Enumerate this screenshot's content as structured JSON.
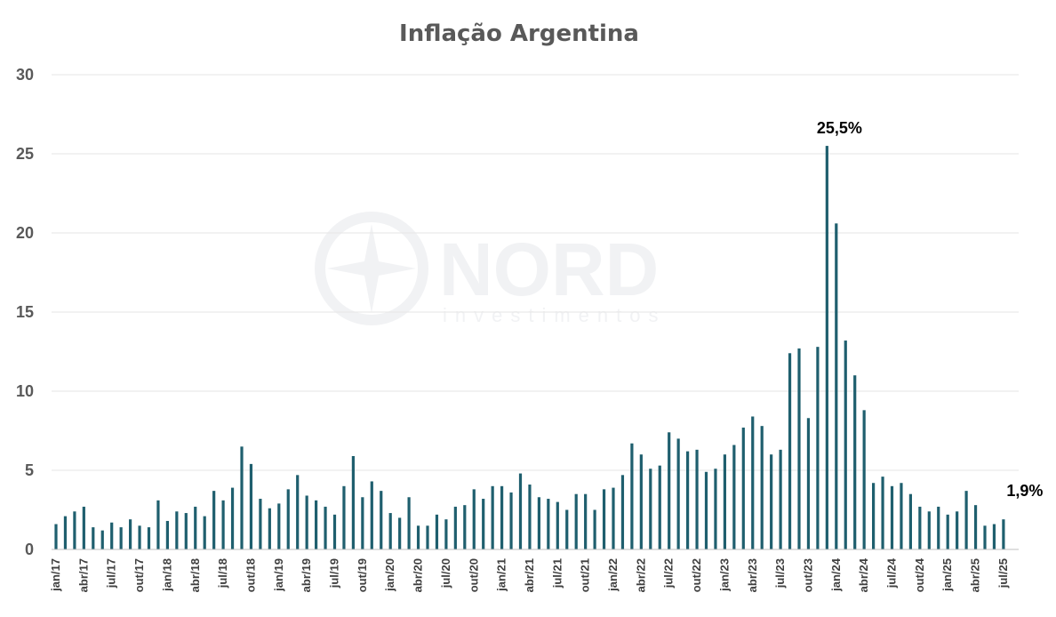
{
  "watermark": {
    "brand": "NORD",
    "sub": "investimentos",
    "logo_icon": "compass-star-icon"
  },
  "chart_data": {
    "type": "bar",
    "title": "Inflação Argentina",
    "xlabel": "",
    "ylabel": "",
    "ylim": [
      0,
      30
    ],
    "yticks": [
      "0",
      "5",
      "10",
      "15",
      "20",
      "25",
      "30"
    ],
    "grid": true,
    "legend": "none",
    "bar_color": "#1f5f6e",
    "categories": [
      "jan/17",
      "fev/17",
      "mar/17",
      "abr/17",
      "mai/17",
      "jun/17",
      "jul/17",
      "ago/17",
      "set/17",
      "out/17",
      "nov/17",
      "dez/17",
      "jan/18",
      "fev/18",
      "mar/18",
      "abr/18",
      "mai/18",
      "jun/18",
      "jul/18",
      "ago/18",
      "set/18",
      "out/18",
      "nov/18",
      "dez/18",
      "jan/19",
      "fev/19",
      "mar/19",
      "abr/19",
      "mai/19",
      "jun/19",
      "jul/19",
      "ago/19",
      "set/19",
      "out/19",
      "nov/19",
      "dez/19",
      "jan/20",
      "fev/20",
      "mar/20",
      "abr/20",
      "mai/20",
      "jun/20",
      "jul/20",
      "ago/20",
      "set/20",
      "out/20",
      "nov/20",
      "dez/20",
      "jan/21",
      "fev/21",
      "mar/21",
      "abr/21",
      "mai/21",
      "jun/21",
      "jul/21",
      "ago/21",
      "set/21",
      "out/21",
      "nov/21",
      "dez/21",
      "jan/22",
      "fev/22",
      "mar/22",
      "abr/22",
      "mai/22",
      "jun/22",
      "jul/22",
      "ago/22",
      "set/22",
      "out/22",
      "nov/22",
      "dez/22",
      "jan/23",
      "fev/23",
      "mar/23",
      "abr/23",
      "mai/23",
      "jun/23",
      "jul/23",
      "ago/23",
      "set/23",
      "out/23",
      "nov/23",
      "dez/23",
      "jan/24",
      "fev/24",
      "mar/24",
      "abr/24",
      "mai/24",
      "jun/24",
      "jul/24",
      "ago/24",
      "set/24",
      "out/24",
      "nov/24",
      "dez/24",
      "jan/25",
      "fev/25",
      "mar/25",
      "abr/25",
      "mai/25",
      "jun/25",
      "jul/25"
    ],
    "xtick_labels": [
      "jan/17",
      "abr/17",
      "jul/17",
      "out/17",
      "jan/18",
      "abr/18",
      "jul/18",
      "out/18",
      "jan/19",
      "abr/19",
      "jul/19",
      "out/19",
      "jan/20",
      "abr/20",
      "jul/20",
      "out/20",
      "jan/21",
      "abr/21",
      "jul/21",
      "out/21",
      "jan/22",
      "abr/22",
      "jul/22",
      "out/22",
      "jan/23",
      "abr/23",
      "jul/23",
      "out/23",
      "jan/24",
      "abr/24",
      "jul/24",
      "out/24",
      "jan/25",
      "abr/25",
      "jul/25"
    ],
    "series": [
      {
        "values": [
          1.6,
          2.1,
          2.4,
          2.7,
          1.4,
          1.2,
          1.7,
          1.4,
          1.9,
          1.5,
          1.4,
          3.1,
          1.8,
          2.4,
          2.3,
          2.7,
          2.1,
          3.7,
          3.1,
          3.9,
          6.5,
          5.4,
          3.2,
          2.6,
          2.9,
          3.8,
          4.7,
          3.4,
          3.1,
          2.7,
          2.2,
          4.0,
          5.9,
          3.3,
          4.3,
          3.7,
          2.3,
          2.0,
          3.3,
          1.5,
          1.5,
          2.2,
          1.9,
          2.7,
          2.8,
          3.8,
          3.2,
          4.0,
          4.0,
          3.6,
          4.8,
          4.1,
          3.3,
          3.2,
          3.0,
          2.5,
          3.5,
          3.5,
          2.5,
          3.8,
          3.9,
          4.7,
          6.7,
          6.0,
          5.1,
          5.3,
          7.4,
          7.0,
          6.2,
          6.3,
          4.9,
          5.1,
          6.0,
          6.6,
          7.7,
          8.4,
          7.8,
          6.0,
          6.3,
          12.4,
          12.7,
          8.3,
          12.8,
          25.5,
          20.6,
          13.2,
          11.0,
          8.8,
          4.2,
          4.6,
          4.0,
          4.2,
          3.5,
          2.7,
          2.4,
          2.7,
          2.2,
          2.4,
          3.7,
          2.8,
          1.5,
          1.6,
          1.9
        ]
      }
    ],
    "annotations": [
      {
        "category": "dez/23",
        "value": 25.5,
        "text": "25,5%"
      },
      {
        "category": "jul/25",
        "value": 1.9,
        "text": "1,9%"
      }
    ]
  }
}
